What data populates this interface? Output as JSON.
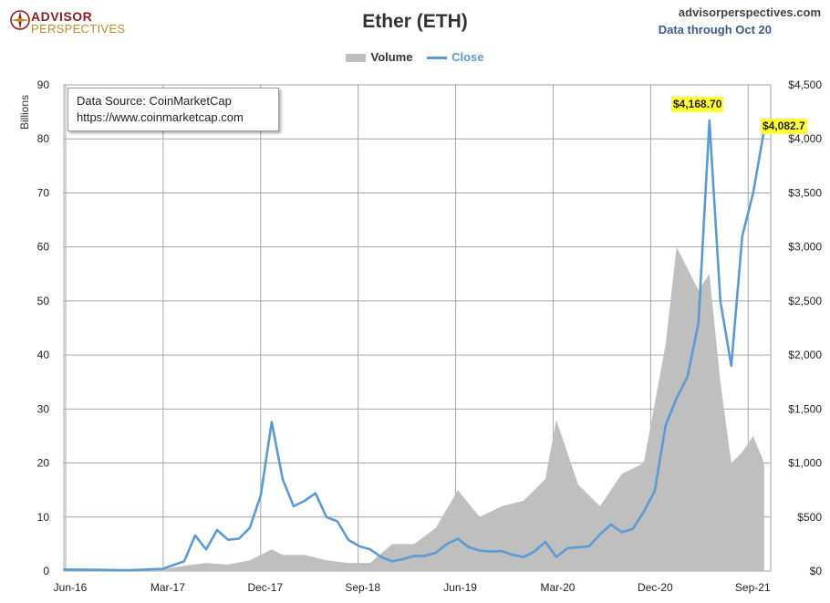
{
  "brand": {
    "line1": "ADVISOR",
    "line2": "PERSPECTIVES"
  },
  "site": "advisorperspectives.com",
  "data_through": "Data through Oct 20",
  "source_box": {
    "line1": "Data Source: CoinMarketCap",
    "line2": "https://www.coinmarketcap.com"
  },
  "callouts": {
    "peak": "$4,168.70",
    "last": "$4,082.7"
  },
  "colors": {
    "volume": "#bfbfbf",
    "close": "#5b9bd5",
    "grid": "#a6a6a6",
    "brand_red": "#8b1f1f",
    "brand_gold": "#b8902c"
  },
  "chart_data": {
    "type": "line",
    "title": "Ether (ETH)",
    "legend": {
      "placement": "top-center",
      "entries": [
        "Volume",
        "Close"
      ]
    },
    "y_left_label": "Billions",
    "x_ticks": [
      "Jun-16",
      "Mar-17",
      "Dec-17",
      "Sep-18",
      "Jun-19",
      "Mar-20",
      "Dec-20",
      "Sep-21"
    ],
    "y_left_ticks": [
      "0",
      "10",
      "20",
      "30",
      "40",
      "50",
      "60",
      "70",
      "80",
      "90"
    ],
    "y_right_ticks": [
      "$0",
      "$500",
      "$1,000",
      "$1,500",
      "$2,000",
      "$2,500",
      "$3,000",
      "$3,500",
      "$4,000",
      "$4,500"
    ],
    "x_range": [
      "2016-06",
      "2021-10"
    ],
    "y_left_range": [
      0,
      90
    ],
    "y_right_range": [
      0,
      4500
    ],
    "grid": true,
    "series": [
      {
        "name": "Volume",
        "type": "area",
        "axis": "left",
        "x": [
          "2016-06",
          "2016-09",
          "2016-12",
          "2017-03",
          "2017-05",
          "2017-07",
          "2017-09",
          "2017-11",
          "2017-12",
          "2018-01",
          "2018-02",
          "2018-04",
          "2018-06",
          "2018-08",
          "2018-10",
          "2018-12",
          "2019-02",
          "2019-04",
          "2019-06",
          "2019-08",
          "2019-10",
          "2019-12",
          "2020-02",
          "2020-03",
          "2020-05",
          "2020-07",
          "2020-09",
          "2020-11",
          "2021-01",
          "2021-02",
          "2021-04",
          "2021-05",
          "2021-06",
          "2021-07",
          "2021-08",
          "2021-09",
          "2021-10"
        ],
        "values": [
          0,
          0,
          0,
          0.3,
          1,
          1.5,
          1.2,
          2,
          3,
          4,
          3,
          3,
          2,
          1.5,
          1.5,
          5,
          5,
          8,
          15,
          10,
          12,
          13,
          17,
          28,
          16,
          12,
          18,
          20,
          42,
          60,
          52,
          55,
          35,
          20,
          22,
          25,
          20
        ]
      },
      {
        "name": "Close",
        "type": "line",
        "axis": "right",
        "x": [
          "2016-06",
          "2016-09",
          "2016-12",
          "2017-03",
          "2017-05",
          "2017-06",
          "2017-07",
          "2017-08",
          "2017-09",
          "2017-10",
          "2017-11",
          "2017-12",
          "2018-01",
          "2018-02",
          "2018-03",
          "2018-04",
          "2018-05",
          "2018-06",
          "2018-07",
          "2018-08",
          "2018-09",
          "2018-10",
          "2018-11",
          "2018-12",
          "2019-01",
          "2019-02",
          "2019-03",
          "2019-04",
          "2019-05",
          "2019-06",
          "2019-07",
          "2019-08",
          "2019-09",
          "2019-10",
          "2019-11",
          "2019-12",
          "2020-01",
          "2020-02",
          "2020-03",
          "2020-04",
          "2020-05",
          "2020-06",
          "2020-07",
          "2020-08",
          "2020-09",
          "2020-10",
          "2020-11",
          "2020-12",
          "2021-01",
          "2021-02",
          "2021-03",
          "2021-04",
          "2021-05",
          "2021-06",
          "2021-07",
          "2021-08",
          "2021-09",
          "2021-10"
        ],
        "values": [
          14,
          12,
          8,
          20,
          90,
          330,
          200,
          380,
          290,
          300,
          400,
          700,
          1380,
          850,
          600,
          650,
          720,
          500,
          460,
          290,
          230,
          200,
          130,
          90,
          110,
          140,
          140,
          170,
          250,
          300,
          220,
          190,
          180,
          185,
          150,
          130,
          180,
          270,
          130,
          210,
          220,
          230,
          340,
          430,
          360,
          390,
          550,
          740,
          1350,
          1600,
          1800,
          2300,
          4168.7,
          2500,
          1900,
          3100,
          3500,
          4082.7
        ]
      }
    ]
  }
}
